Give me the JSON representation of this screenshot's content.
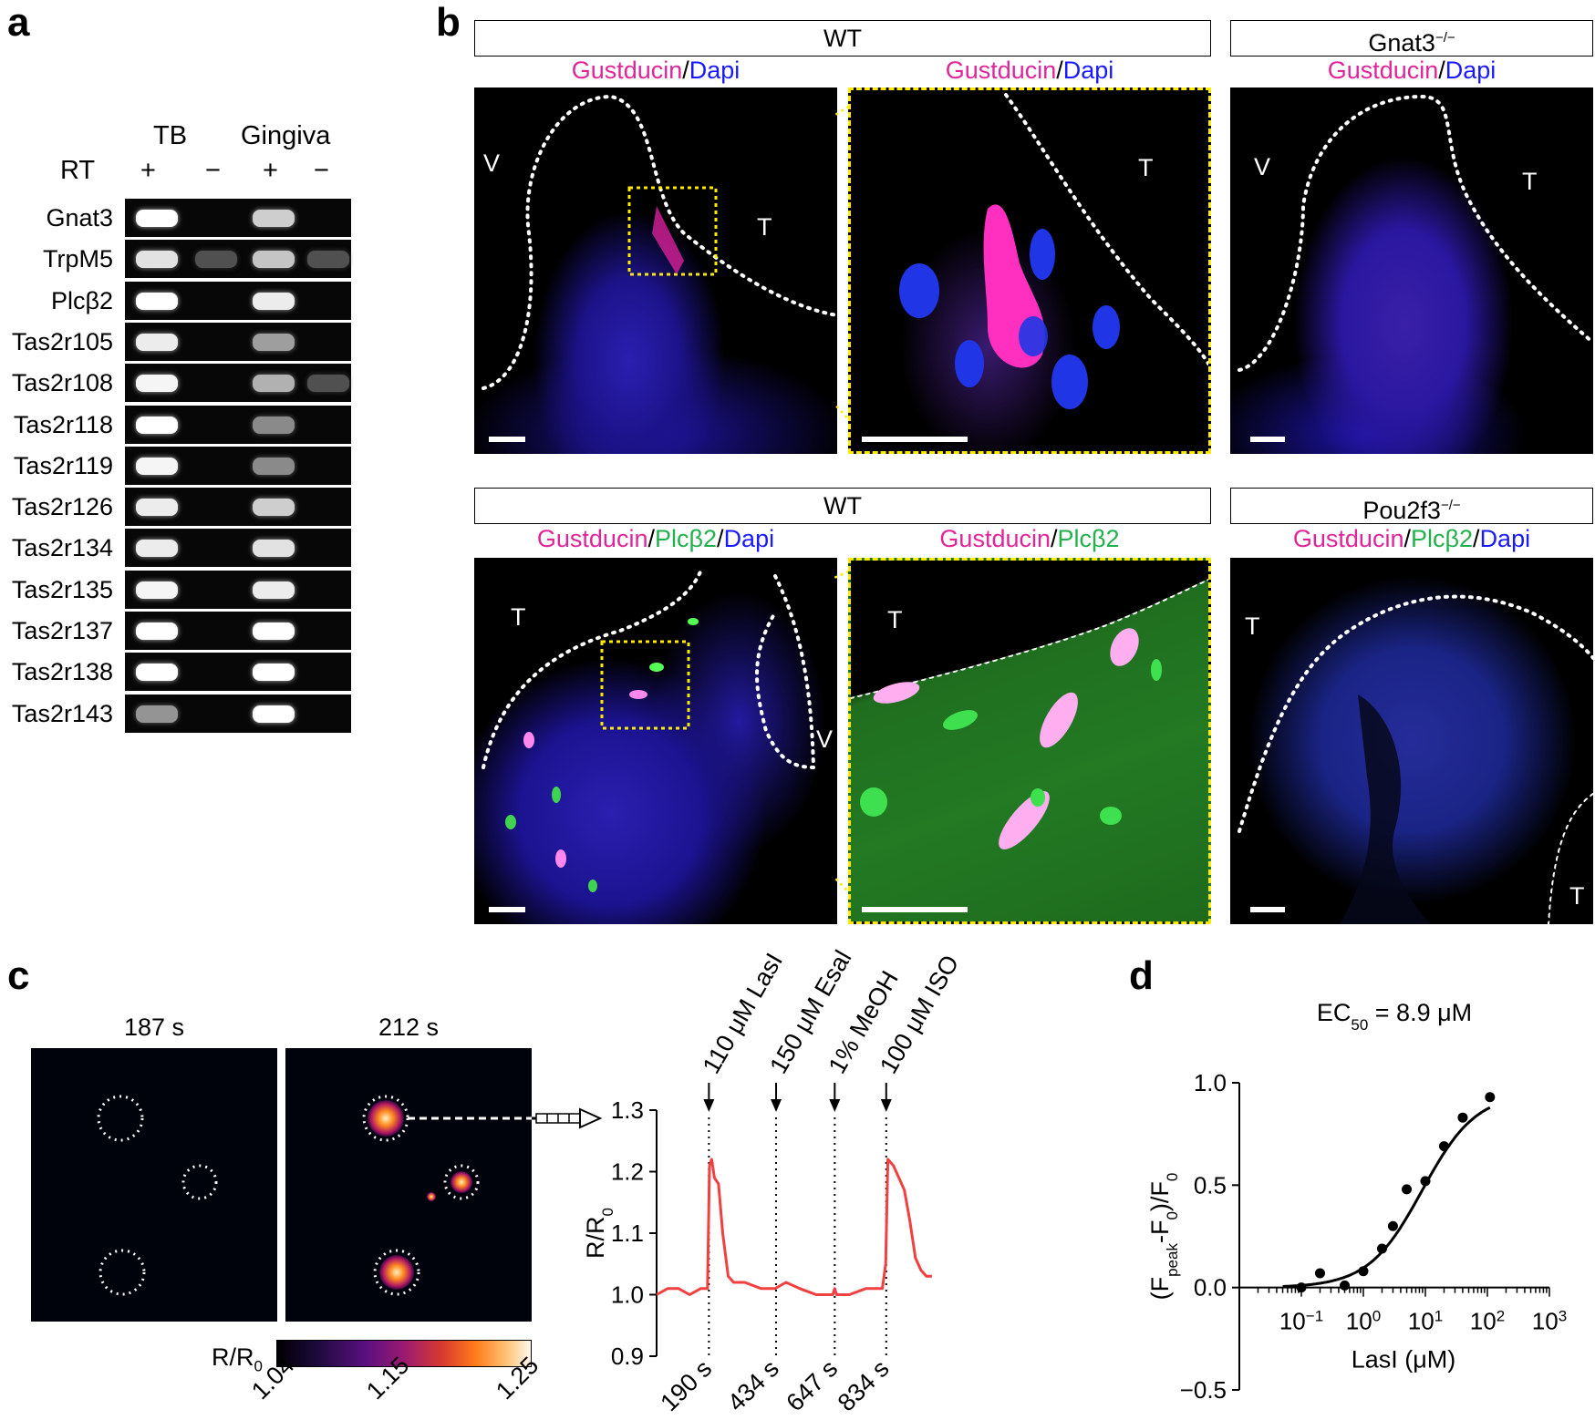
{
  "panels": {
    "a": "a",
    "b": "b",
    "c": "c",
    "d": "d"
  },
  "gel": {
    "col_groups": [
      "TB",
      "Gingiva"
    ],
    "rt_label": "RT",
    "rt_signs": [
      "+",
      "−",
      "+",
      "−"
    ],
    "rows": [
      {
        "gene": "Gnat3",
        "bands": [
          1.0,
          0,
          0.75,
          0
        ]
      },
      {
        "gene": "TrpM5",
        "bands": [
          0.85,
          0.1,
          0.7,
          0.1
        ]
      },
      {
        "gene": "Plcβ2",
        "bands": [
          1.0,
          0,
          0.9,
          0
        ]
      },
      {
        "gene": "Tas2r105",
        "bands": [
          0.9,
          0,
          0.5,
          0
        ]
      },
      {
        "gene": "Tas2r108",
        "bands": [
          0.95,
          0,
          0.6,
          0.1
        ]
      },
      {
        "gene": "Tas2r118",
        "bands": [
          1.0,
          0,
          0.4,
          0
        ]
      },
      {
        "gene": "Tas2r119",
        "bands": [
          0.95,
          0,
          0.4,
          0
        ]
      },
      {
        "gene": "Tas2r126",
        "bands": [
          0.9,
          0,
          0.75,
          0
        ]
      },
      {
        "gene": "Tas2r134",
        "bands": [
          0.9,
          0,
          0.85,
          0
        ]
      },
      {
        "gene": "Tas2r135",
        "bands": [
          0.95,
          0,
          0.9,
          0
        ]
      },
      {
        "gene": "Tas2r137",
        "bands": [
          1.0,
          0,
          1.0,
          0
        ]
      },
      {
        "gene": "Tas2r138",
        "bands": [
          1.0,
          0,
          1.0,
          0
        ]
      },
      {
        "gene": "Tas2r143",
        "bands": [
          0.45,
          0,
          1.0,
          0
        ]
      }
    ]
  },
  "microscopy": {
    "row1": {
      "wt_header": "WT",
      "ko_header": "Gnat3",
      "ko_sup": "−/−",
      "stain_parts": [
        "Gustducin",
        "/",
        "Dapi"
      ],
      "img1_labels": [
        "V",
        "T"
      ],
      "img2_labels": [
        "T"
      ],
      "img3_labels": [
        "V",
        "T"
      ]
    },
    "row2": {
      "wt_header": "WT",
      "ko_header": "Pou2f3",
      "ko_sup": "−/−",
      "stain1_parts": [
        "Gustducin",
        "/",
        "Plcβ2",
        "/",
        "Dapi"
      ],
      "stain2_parts": [
        "Gustducin",
        "/",
        "Plcβ2"
      ],
      "stain3_parts": [
        "Gustducin",
        "/",
        "Plcβ2",
        "/",
        "Dapi"
      ],
      "img1_labels": [
        "T",
        "V"
      ],
      "img2_labels": [
        "T"
      ],
      "img3_labels": [
        "T",
        "T"
      ]
    }
  },
  "calcium": {
    "time1": "187 s",
    "time2": "212 s",
    "colorbar_label": "R/R",
    "colorbar_sub": "0",
    "colorbar_ticks": [
      "1.04",
      "1.15",
      "1.25"
    ]
  },
  "chart_data": [
    {
      "type": "line",
      "ylabel": "R/R0",
      "ylim": [
        0.9,
        1.3
      ],
      "yticks": [
        "0.9",
        "1.0",
        "1.1",
        "1.2",
        "1.3"
      ],
      "xlim": [
        0,
        1060
      ],
      "events": [
        {
          "t": 190,
          "label": "110 μM LasI",
          "tick": "190 s"
        },
        {
          "t": 434,
          "label": "150 μM Esal",
          "tick": "434 s"
        },
        {
          "t": 647,
          "label": "1% MeOH",
          "tick": "647 s"
        },
        {
          "t": 834,
          "label": "100 μM ISO",
          "tick": "834 s"
        }
      ],
      "series": [
        {
          "color": "#f04040",
          "x": [
            0,
            40,
            80,
            120,
            160,
            185,
            192,
            200,
            210,
            225,
            240,
            260,
            280,
            320,
            380,
            430,
            470,
            520,
            580,
            640,
            647,
            654,
            700,
            760,
            820,
            832,
            840,
            860,
            880,
            900,
            920,
            940,
            960,
            980,
            1000
          ],
          "y": [
            1.0,
            1.01,
            1.01,
            1.0,
            1.01,
            1.01,
            1.21,
            1.22,
            1.19,
            1.18,
            1.1,
            1.03,
            1.02,
            1.02,
            1.01,
            1.01,
            1.02,
            1.01,
            1.0,
            1.0,
            1.01,
            1.0,
            1.0,
            1.01,
            1.01,
            1.05,
            1.22,
            1.21,
            1.19,
            1.17,
            1.12,
            1.06,
            1.04,
            1.03,
            1.03
          ]
        }
      ]
    },
    {
      "type": "scatter",
      "title": "EC50 = 8.9 μM",
      "title_main": "EC",
      "title_sub": "50",
      "title_rest": " = 8.9 μM",
      "xlabel": "LasI (μM)",
      "ylabel": "(Fpeak-F0)/F0",
      "xscale": "log",
      "xlim": [
        0.01,
        1000
      ],
      "ylim": [
        -0.5,
        1.0
      ],
      "yticks": [
        "−0.5",
        "0.0",
        "0.5",
        "1.0"
      ],
      "xticks": [
        {
          "base": "10",
          "exp": "−1"
        },
        {
          "base": "10",
          "exp": "0"
        },
        {
          "base": "10",
          "exp": "1"
        },
        {
          "base": "10",
          "exp": "2"
        },
        {
          "base": "10",
          "exp": "3"
        }
      ],
      "points": {
        "x": [
          0.1,
          0.2,
          0.5,
          1.0,
          2.0,
          3.0,
          5.0,
          10.0,
          20.0,
          40.0,
          110.0
        ],
        "y": [
          0.0,
          0.07,
          0.01,
          0.08,
          0.19,
          0.3,
          0.48,
          0.52,
          0.69,
          0.83,
          0.93
        ]
      },
      "fit": {
        "ec50": 8.9,
        "hill": 1.0,
        "top": 0.95,
        "bottom": 0.0
      }
    }
  ]
}
